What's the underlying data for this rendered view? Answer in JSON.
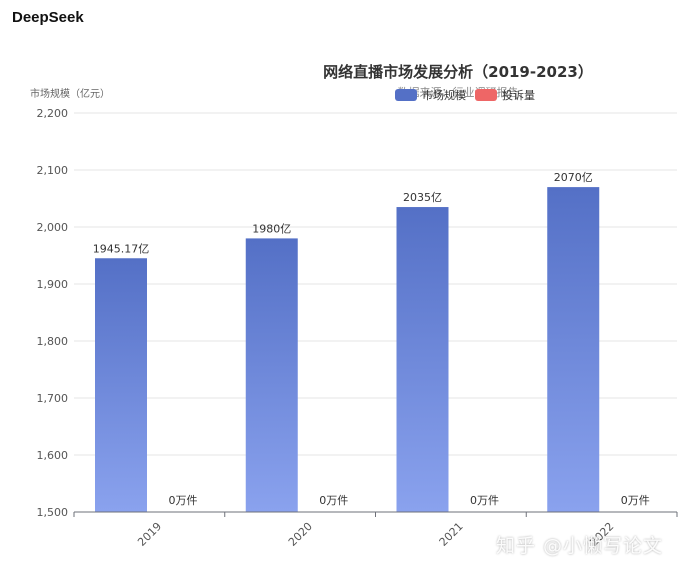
{
  "app": {
    "title": "DeepSeek"
  },
  "watermark": "知乎 @小懒写论文",
  "chart_data": {
    "type": "bar",
    "title": "网络直播市场发展分析（2019-2023）",
    "subtitle": "数据来源：行业调研报告",
    "ylabel": "市场规模（亿元）",
    "xlabel": "",
    "categories": [
      "2019",
      "2020",
      "2021",
      "2022"
    ],
    "ylim": [
      1500,
      2200
    ],
    "yticks": [
      1500,
      1600,
      1700,
      1800,
      1900,
      2000,
      2100,
      2200
    ],
    "ytick_labels": [
      "1,500",
      "1,600",
      "1,700",
      "1,800",
      "1,900",
      "2,000",
      "2,100",
      "2,200"
    ],
    "grid": true,
    "legend_position": "top-right",
    "series": [
      {
        "name": "市场规模",
        "values": [
          1945.17,
          1980,
          2035,
          2070
        ],
        "labels": [
          "1945.17亿",
          "1980亿",
          "2035亿",
          "2070亿"
        ],
        "color_top": "#5470c6",
        "color_bottom": "#8aa2ee"
      },
      {
        "name": "投诉量",
        "values": [
          0,
          0,
          0,
          0
        ],
        "labels": [
          "0万件",
          "0万件",
          "0万件",
          "0万件"
        ],
        "color_top": "#ee6666",
        "color_bottom": "#ee6666"
      }
    ]
  }
}
